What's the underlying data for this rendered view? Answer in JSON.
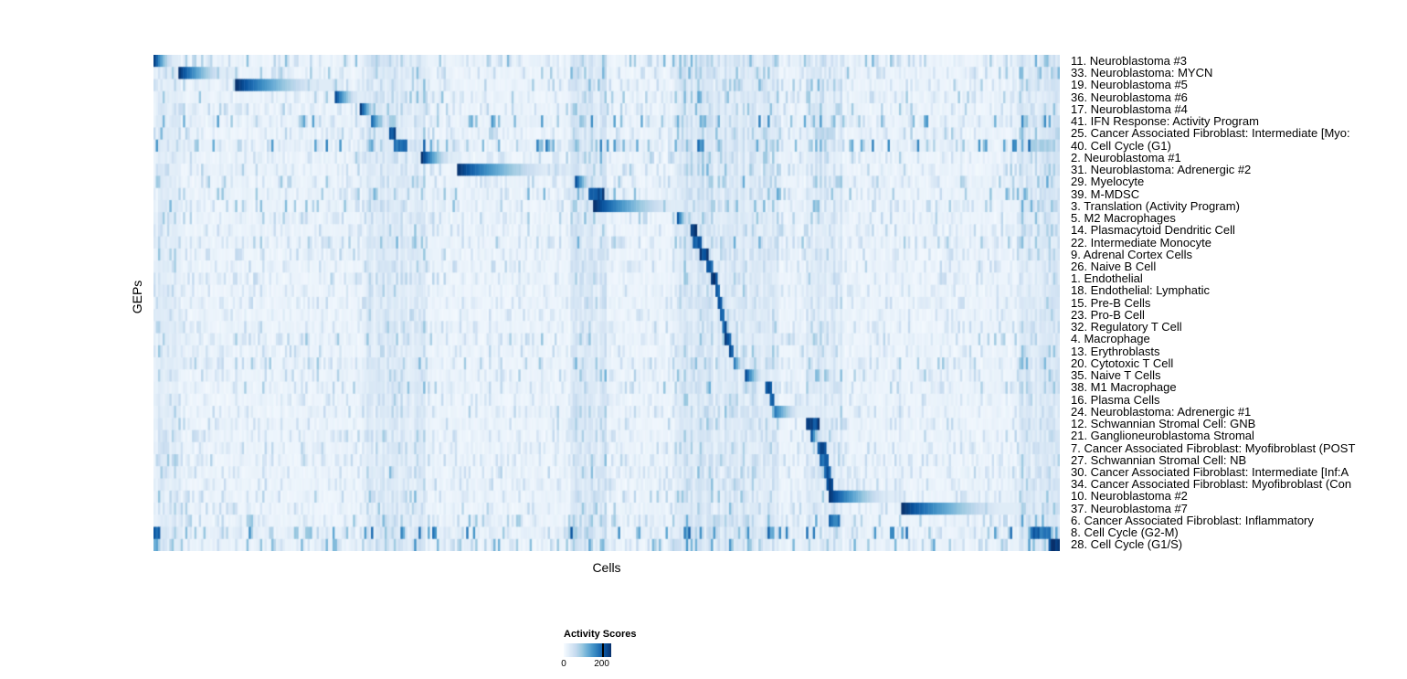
{
  "chart_data": {
    "type": "heatmap",
    "title": "",
    "xlabel": "Cells",
    "ylabel": "GEPs",
    "legend_title": "Activity Scores",
    "scale": {
      "min": 0,
      "max": 200,
      "tick_labels": [
        "0",
        "200"
      ]
    },
    "colormap": [
      "#f7fbff",
      "#deebf7",
      "#c6dbef",
      "#9ecae1",
      "#6baed6",
      "#4292c6",
      "#2171b5",
      "#08519c",
      "#08306b"
    ],
    "n_columns": 400,
    "n_rows": 41,
    "column_bands": [
      {
        "start": 0.0,
        "end": 0.03,
        "strength": 0.1
      },
      {
        "start": 0.23,
        "end": 0.3,
        "strength": 0.1
      },
      {
        "start": 0.46,
        "end": 0.5,
        "strength": 0.14
      },
      {
        "start": 0.575,
        "end": 0.69,
        "strength": 0.13
      },
      {
        "start": 0.72,
        "end": 0.76,
        "strength": 0.11
      },
      {
        "start": 0.955,
        "end": 1.0,
        "strength": 0.13
      }
    ],
    "rows": [
      {
        "label": "11. Neuroblastoma #3",
        "noise": 0.1,
        "segments": [
          {
            "start": 0.0,
            "end": 0.028,
            "peak": 1.0,
            "fade": true
          }
        ]
      },
      {
        "label": "33. Neuroblastoma: MYCN",
        "noise": 0.08,
        "segments": [
          {
            "start": 0.028,
            "end": 0.093,
            "peak": 1.0,
            "fade": true
          }
        ]
      },
      {
        "label": "19. Neuroblastoma #5",
        "noise": 0.08,
        "segments": [
          {
            "start": 0.091,
            "end": 0.21,
            "peak": 1.0,
            "fade": true
          }
        ]
      },
      {
        "label": "36. Neuroblastoma #6",
        "noise": 0.08,
        "segments": [
          {
            "start": 0.2,
            "end": 0.233,
            "peak": 0.95,
            "fade": true
          }
        ]
      },
      {
        "label": "17. Neuroblastoma #4",
        "noise": 0.08,
        "segments": [
          {
            "start": 0.228,
            "end": 0.251,
            "peak": 1.0,
            "fade": true
          }
        ]
      },
      {
        "label": "41. IFN Response: Activity Program",
        "noise": 0.14,
        "segments": [
          {
            "start": 0.239,
            "end": 0.264,
            "peak": 0.9,
            "fade": true
          }
        ]
      },
      {
        "label": "25. Cancer Associated Fibroblast: Intermediate [Myo:",
        "noise": 0.07,
        "segments": [
          {
            "start": 0.259,
            "end": 0.268,
            "peak": 0.9,
            "fade": false
          },
          {
            "start": 0.73,
            "end": 0.752,
            "peak": 0.3,
            "fade": false
          }
        ]
      },
      {
        "label": "40. Cell Cycle (G1)",
        "noise": 0.16,
        "segments": [
          {
            "start": 0.266,
            "end": 0.28,
            "peak": 0.85,
            "fade": false
          },
          {
            "start": 0.965,
            "end": 0.995,
            "peak": 0.35,
            "fade": false
          }
        ]
      },
      {
        "label": "2. Neuroblastoma #1",
        "noise": 0.07,
        "segments": [
          {
            "start": 0.296,
            "end": 0.337,
            "peak": 1.0,
            "fade": true
          }
        ]
      },
      {
        "label": "31. Neuroblastoma: Adrenergic #2",
        "noise": 0.07,
        "segments": [
          {
            "start": 0.335,
            "end": 0.468,
            "peak": 1.0,
            "fade": true
          }
        ]
      },
      {
        "label": "29. Myelocyte",
        "noise": 0.08,
        "segments": [
          {
            "start": 0.466,
            "end": 0.489,
            "peak": 0.9,
            "fade": true
          }
        ]
      },
      {
        "label": "39. M-MDSC",
        "noise": 0.1,
        "segments": [
          {
            "start": 0.479,
            "end": 0.498,
            "peak": 1.0,
            "fade": false
          }
        ]
      },
      {
        "label": "3. Translation (Activity Program)",
        "noise": 0.09,
        "segments": [
          {
            "start": 0.486,
            "end": 0.6,
            "peak": 1.0,
            "fade": true
          }
        ]
      },
      {
        "label": "5. M2 Macrophages",
        "noise": 0.07,
        "segments": [
          {
            "start": 0.577,
            "end": 0.594,
            "peak": 1.0,
            "fade": true
          }
        ]
      },
      {
        "label": "14. Plasmacytoid Dendritic Cell",
        "noise": 0.06,
        "segments": [
          {
            "start": 0.592,
            "end": 0.601,
            "peak": 1.0,
            "fade": false
          }
        ]
      },
      {
        "label": "22. Intermediate Monocyte",
        "noise": 0.08,
        "segments": [
          {
            "start": 0.596,
            "end": 0.605,
            "peak": 0.85,
            "fade": false
          }
        ]
      },
      {
        "label": "9. Adrenal Cortex Cells",
        "noise": 0.06,
        "segments": [
          {
            "start": 0.602,
            "end": 0.613,
            "peak": 1.0,
            "fade": false
          }
        ]
      },
      {
        "label": "26. Naive B Cell",
        "noise": 0.06,
        "segments": [
          {
            "start": 0.609,
            "end": 0.618,
            "peak": 0.95,
            "fade": false
          }
        ]
      },
      {
        "label": "1. Endothelial",
        "noise": 0.06,
        "segments": [
          {
            "start": 0.615,
            "end": 0.623,
            "peak": 1.0,
            "fade": false
          }
        ]
      },
      {
        "label": "18. Endothelial: Lymphatic",
        "noise": 0.05,
        "segments": [
          {
            "start": 0.62,
            "end": 0.626,
            "peak": 0.9,
            "fade": false
          }
        ]
      },
      {
        "label": "15. Pre-B Cells",
        "noise": 0.05,
        "segments": [
          {
            "start": 0.623,
            "end": 0.628,
            "peak": 0.9,
            "fade": false
          }
        ]
      },
      {
        "label": "23. Pro-B Cell",
        "noise": 0.05,
        "segments": [
          {
            "start": 0.626,
            "end": 0.631,
            "peak": 0.95,
            "fade": false
          }
        ]
      },
      {
        "label": "32. Regulatory T Cell",
        "noise": 0.06,
        "segments": [
          {
            "start": 0.628,
            "end": 0.633,
            "peak": 0.9,
            "fade": false
          }
        ]
      },
      {
        "label": "4. Macrophage",
        "noise": 0.08,
        "segments": [
          {
            "start": 0.631,
            "end": 0.638,
            "peak": 0.95,
            "fade": false
          }
        ]
      },
      {
        "label": "13. Erythroblasts",
        "noise": 0.06,
        "segments": [
          {
            "start": 0.636,
            "end": 0.641,
            "peak": 0.9,
            "fade": false
          }
        ]
      },
      {
        "label": "20. Cytotoxic T Cell",
        "noise": 0.08,
        "segments": [
          {
            "start": 0.639,
            "end": 0.655,
            "peak": 0.9,
            "fade": true
          }
        ]
      },
      {
        "label": "35. Naive T Cells",
        "noise": 0.08,
        "segments": [
          {
            "start": 0.652,
            "end": 0.678,
            "peak": 1.0,
            "fade": true
          }
        ]
      },
      {
        "label": "38. M1 Macrophage",
        "noise": 0.08,
        "segments": [
          {
            "start": 0.675,
            "end": 0.683,
            "peak": 0.9,
            "fade": false
          }
        ]
      },
      {
        "label": "16. Plasma Cells",
        "noise": 0.05,
        "segments": [
          {
            "start": 0.68,
            "end": 0.686,
            "peak": 0.95,
            "fade": false
          }
        ]
      },
      {
        "label": "24. Neuroblastoma: Adrenergic #1",
        "noise": 0.07,
        "segments": [
          {
            "start": 0.685,
            "end": 0.723,
            "peak": 0.75,
            "fade": true
          }
        ]
      },
      {
        "label": "12. Schwannian Stromal Cell: GNB",
        "noise": 0.06,
        "segments": [
          {
            "start": 0.72,
            "end": 0.734,
            "peak": 1.0,
            "fade": false
          }
        ]
      },
      {
        "label": "21. Ganglioneuroblastoma Stromal",
        "noise": 0.06,
        "segments": [
          {
            "start": 0.725,
            "end": 0.739,
            "peak": 1.0,
            "fade": true
          }
        ]
      },
      {
        "label": "7. Cancer Associated Fibroblast: Myofibroblast (POST",
        "noise": 0.06,
        "segments": [
          {
            "start": 0.732,
            "end": 0.742,
            "peak": 1.0,
            "fade": false
          }
        ]
      },
      {
        "label": "27. Schwannian Stromal Cell: NB",
        "noise": 0.06,
        "segments": [
          {
            "start": 0.736,
            "end": 0.744,
            "peak": 0.9,
            "fade": false
          }
        ]
      },
      {
        "label": "30. Cancer Associated Fibroblast: Intermediate [Inf:A",
        "noise": 0.06,
        "segments": [
          {
            "start": 0.739,
            "end": 0.747,
            "peak": 0.9,
            "fade": false
          },
          {
            "start": 0.259,
            "end": 0.263,
            "peak": 0.5,
            "fade": false
          }
        ]
      },
      {
        "label": "34. Cancer Associated Fibroblast: Myofibroblast (Con",
        "noise": 0.06,
        "segments": [
          {
            "start": 0.742,
            "end": 0.749,
            "peak": 0.95,
            "fade": false
          }
        ]
      },
      {
        "label": "10. Neuroblastoma #2",
        "noise": 0.07,
        "segments": [
          {
            "start": 0.745,
            "end": 0.831,
            "peak": 1.0,
            "fade": true
          }
        ]
      },
      {
        "label": "37. Neuroblastoma #7",
        "noise": 0.07,
        "segments": [
          {
            "start": 0.826,
            "end": 0.972,
            "peak": 1.0,
            "fade": true
          }
        ]
      },
      {
        "label": "6. Cancer Associated Fibroblast: Inflammatory",
        "noise": 0.09,
        "segments": [
          {
            "start": 0.744,
            "end": 0.757,
            "peak": 0.8,
            "fade": false
          }
        ]
      },
      {
        "label": "8. Cell Cycle (G2-M)",
        "noise": 0.18,
        "segments": [
          {
            "start": 0.0,
            "end": 0.008,
            "peak": 0.9,
            "fade": false
          },
          {
            "start": 0.968,
            "end": 0.991,
            "peak": 0.85,
            "fade": false
          }
        ]
      },
      {
        "label": "28. Cell Cycle (G1/S)",
        "noise": 0.12,
        "segments": [
          {
            "start": 0.988,
            "end": 1.0,
            "peak": 1.0,
            "fade": false
          },
          {
            "start": 0.0,
            "end": 0.006,
            "peak": 0.6,
            "fade": false
          }
        ]
      }
    ]
  }
}
